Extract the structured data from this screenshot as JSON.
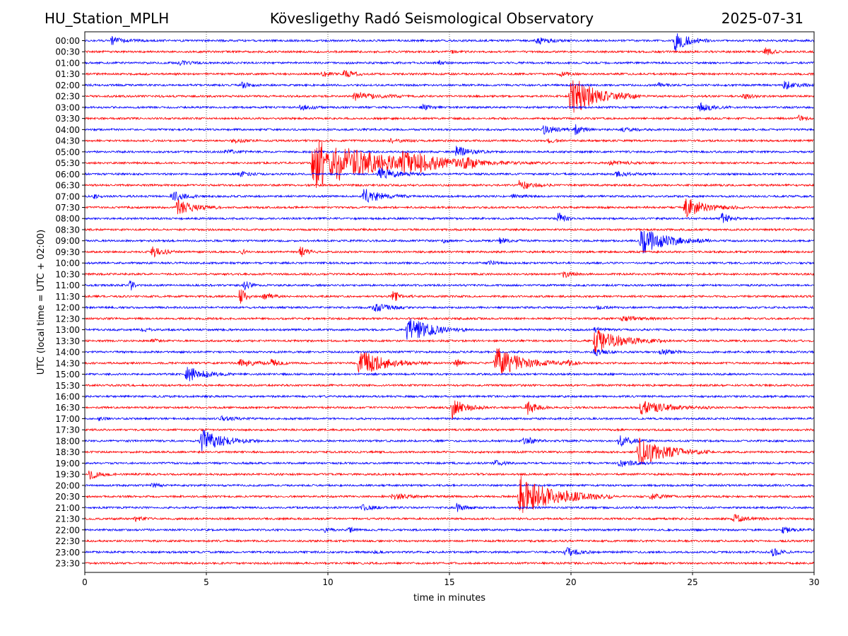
{
  "header": {
    "station": "HU_Station_MPLH",
    "observatory": "Kövesligethy Radó Seismological Observatory",
    "date": "2025-07-31"
  },
  "chart_data": {
    "type": "line",
    "title": "Kövesligethy Radó Seismological Observatory",
    "xlabel": "time in minutes",
    "ylabel": "UTC (local time = UTC + 02:00)",
    "xlim": [
      0,
      30
    ],
    "x_ticks": [
      "0",
      "5",
      "10",
      "15",
      "20",
      "25",
      "30"
    ],
    "x_tick_values": [
      0,
      5,
      10,
      15,
      20,
      25,
      30
    ],
    "grid": "vertical dotted at x tick positions",
    "row_labels": [
      "00:00",
      "00:30",
      "01:00",
      "01:30",
      "02:00",
      "02:30",
      "03:00",
      "03:30",
      "04:00",
      "04:30",
      "05:00",
      "05:30",
      "06:00",
      "06:30",
      "07:00",
      "07:30",
      "08:00",
      "08:30",
      "09:00",
      "09:30",
      "10:00",
      "10:30",
      "11:00",
      "11:30",
      "12:00",
      "12:30",
      "13:00",
      "13:30",
      "14:00",
      "14:30",
      "15:00",
      "15:30",
      "16:00",
      "16:30",
      "17:00",
      "17:30",
      "18:00",
      "18:30",
      "19:00",
      "19:30",
      "20:00",
      "20:30",
      "21:00",
      "21:30",
      "22:00",
      "22:30",
      "23:00",
      "23:30"
    ],
    "colors": {
      "even_rows": "#0000ff",
      "odd_rows": "#ff0000"
    },
    "events": [
      {
        "row": "00:00",
        "start": 1.0,
        "amp": 0.5,
        "dur": 1.5
      },
      {
        "row": "00:00",
        "start": 18.5,
        "amp": 0.4,
        "dur": 1.5
      },
      {
        "row": "00:00",
        "start": 24.2,
        "amp": 1.3,
        "dur": 1.5
      },
      {
        "row": "00:30",
        "start": 15.0,
        "amp": 0.2,
        "dur": 0.8
      },
      {
        "row": "00:30",
        "start": 27.9,
        "amp": 0.45,
        "dur": 1.0
      },
      {
        "row": "01:00",
        "start": 3.8,
        "amp": 0.25,
        "dur": 1.2
      },
      {
        "row": "01:00",
        "start": 14.5,
        "amp": 0.2,
        "dur": 0.8
      },
      {
        "row": "01:30",
        "start": 9.7,
        "amp": 0.35,
        "dur": 0.8
      },
      {
        "row": "01:30",
        "start": 10.6,
        "amp": 0.45,
        "dur": 1.2
      },
      {
        "row": "01:30",
        "start": 19.5,
        "amp": 0.25,
        "dur": 1.0
      },
      {
        "row": "02:00",
        "start": 6.4,
        "amp": 0.3,
        "dur": 1.0
      },
      {
        "row": "02:00",
        "start": 23.5,
        "amp": 0.25,
        "dur": 1.0
      },
      {
        "row": "02:00",
        "start": 28.7,
        "amp": 0.5,
        "dur": 1.3
      },
      {
        "row": "02:30",
        "start": 11.0,
        "amp": 0.5,
        "dur": 2.5
      },
      {
        "row": "02:30",
        "start": 19.9,
        "amp": 2.5,
        "dur": 3.0
      },
      {
        "row": "02:30",
        "start": 27.0,
        "amp": 0.3,
        "dur": 1.0
      },
      {
        "row": "03:00",
        "start": 8.8,
        "amp": 0.3,
        "dur": 1.2
      },
      {
        "row": "03:00",
        "start": 13.8,
        "amp": 0.3,
        "dur": 1.0
      },
      {
        "row": "03:00",
        "start": 25.2,
        "amp": 0.5,
        "dur": 1.5
      },
      {
        "row": "03:30",
        "start": 29.3,
        "amp": 0.3,
        "dur": 0.7
      },
      {
        "row": "04:00",
        "start": 18.8,
        "amp": 0.55,
        "dur": 1.5
      },
      {
        "row": "04:00",
        "start": 20.1,
        "amp": 0.55,
        "dur": 1.0
      },
      {
        "row": "04:00",
        "start": 22.0,
        "amp": 0.2,
        "dur": 1.5
      },
      {
        "row": "04:30",
        "start": 6.0,
        "amp": 0.2,
        "dur": 1.5
      },
      {
        "row": "04:30",
        "start": 12.5,
        "amp": 0.2,
        "dur": 1.5
      },
      {
        "row": "04:30",
        "start": 19.0,
        "amp": 0.2,
        "dur": 1.0
      },
      {
        "row": "05:00",
        "start": 5.7,
        "amp": 0.25,
        "dur": 1.2
      },
      {
        "row": "05:00",
        "start": 15.2,
        "amp": 0.6,
        "dur": 1.5
      },
      {
        "row": "05:30",
        "start": 9.3,
        "amp": 3.2,
        "dur": 7.0
      },
      {
        "row": "05:30",
        "start": 13.0,
        "amp": 1.2,
        "dur": 3.0
      },
      {
        "row": "05:30",
        "start": 15.5,
        "amp": 0.4,
        "dur": 4.0
      },
      {
        "row": "05:30",
        "start": 21.5,
        "amp": 0.25,
        "dur": 2.0
      },
      {
        "row": "06:00",
        "start": 6.3,
        "amp": 0.3,
        "dur": 1.0
      },
      {
        "row": "06:00",
        "start": 12.0,
        "amp": 0.8,
        "dur": 2.0
      },
      {
        "row": "06:00",
        "start": 21.8,
        "amp": 0.3,
        "dur": 1.5
      },
      {
        "row": "06:30",
        "start": 17.8,
        "amp": 0.6,
        "dur": 1.5
      },
      {
        "row": "07:00",
        "start": 0.3,
        "amp": 0.25,
        "dur": 0.6
      },
      {
        "row": "07:00",
        "start": 3.5,
        "amp": 0.6,
        "dur": 1.5
      },
      {
        "row": "07:00",
        "start": 11.4,
        "amp": 0.9,
        "dur": 2.0
      },
      {
        "row": "07:00",
        "start": 17.5,
        "amp": 0.2,
        "dur": 1.0
      },
      {
        "row": "07:30",
        "start": 3.7,
        "amp": 0.9,
        "dur": 2.0
      },
      {
        "row": "07:30",
        "start": 24.6,
        "amp": 1.2,
        "dur": 2.5
      },
      {
        "row": "08:00",
        "start": 19.4,
        "amp": 1.0,
        "dur": 0.6
      },
      {
        "row": "08:00",
        "start": 26.1,
        "amp": 0.8,
        "dur": 0.8
      },
      {
        "row": "09:00",
        "start": 14.7,
        "amp": 0.3,
        "dur": 0.4
      },
      {
        "row": "09:00",
        "start": 17.0,
        "amp": 0.4,
        "dur": 1.0
      },
      {
        "row": "09:00",
        "start": 22.8,
        "amp": 1.6,
        "dur": 3.0
      },
      {
        "row": "09:30",
        "start": 2.7,
        "amp": 0.6,
        "dur": 1.3
      },
      {
        "row": "09:30",
        "start": 6.4,
        "amp": 0.3,
        "dur": 0.4
      },
      {
        "row": "09:30",
        "start": 8.8,
        "amp": 0.6,
        "dur": 0.8
      },
      {
        "row": "10:00",
        "start": 16.5,
        "amp": 0.25,
        "dur": 1.0
      },
      {
        "row": "10:30",
        "start": 19.6,
        "amp": 0.45,
        "dur": 1.0
      },
      {
        "row": "11:00",
        "start": 1.8,
        "amp": 1.0,
        "dur": 0.3
      },
      {
        "row": "11:00",
        "start": 6.5,
        "amp": 0.6,
        "dur": 0.6
      },
      {
        "row": "11:30",
        "start": 6.3,
        "amp": 1.2,
        "dur": 0.6
      },
      {
        "row": "11:30",
        "start": 7.3,
        "amp": 0.5,
        "dur": 0.8
      },
      {
        "row": "11:30",
        "start": 12.6,
        "amp": 0.6,
        "dur": 1.0
      },
      {
        "row": "12:00",
        "start": 11.8,
        "amp": 0.6,
        "dur": 1.5
      },
      {
        "row": "12:00",
        "start": 21.0,
        "amp": 0.2,
        "dur": 1.0
      },
      {
        "row": "12:30",
        "start": 22.0,
        "amp": 0.3,
        "dur": 2.0
      },
      {
        "row": "13:00",
        "start": 2.3,
        "amp": 0.2,
        "dur": 0.8
      },
      {
        "row": "13:00",
        "start": 13.2,
        "amp": 1.6,
        "dur": 2.5
      },
      {
        "row": "13:00",
        "start": 20.9,
        "amp": 0.3,
        "dur": 1.0
      },
      {
        "row": "13:30",
        "start": 2.7,
        "amp": 0.2,
        "dur": 0.6
      },
      {
        "row": "13:30",
        "start": 20.9,
        "amp": 1.5,
        "dur": 3.0
      },
      {
        "row": "14:00",
        "start": 20.9,
        "amp": 0.5,
        "dur": 1.0
      },
      {
        "row": "14:00",
        "start": 23.6,
        "amp": 0.6,
        "dur": 1.0
      },
      {
        "row": "14:30",
        "start": 6.3,
        "amp": 0.4,
        "dur": 2.0
      },
      {
        "row": "14:30",
        "start": 7.6,
        "amp": 0.5,
        "dur": 0.8
      },
      {
        "row": "14:30",
        "start": 11.2,
        "amp": 1.6,
        "dur": 3.0
      },
      {
        "row": "14:30",
        "start": 15.2,
        "amp": 0.4,
        "dur": 0.8
      },
      {
        "row": "14:30",
        "start": 16.8,
        "amp": 2.0,
        "dur": 3.0
      },
      {
        "row": "14:30",
        "start": 19.8,
        "amp": 0.3,
        "dur": 1.0
      },
      {
        "row": "15:00",
        "start": 4.1,
        "amp": 0.9,
        "dur": 2.0
      },
      {
        "row": "16:30",
        "start": 15.0,
        "amp": 1.3,
        "dur": 1.5
      },
      {
        "row": "16:30",
        "start": 18.1,
        "amp": 1.1,
        "dur": 1.0
      },
      {
        "row": "16:30",
        "start": 22.8,
        "amp": 0.8,
        "dur": 3.0
      },
      {
        "row": "17:00",
        "start": 0.5,
        "amp": 0.3,
        "dur": 0.6
      },
      {
        "row": "17:00",
        "start": 5.5,
        "amp": 0.25,
        "dur": 1.5
      },
      {
        "row": "18:00",
        "start": 4.7,
        "amp": 1.4,
        "dur": 2.5
      },
      {
        "row": "18:00",
        "start": 18.0,
        "amp": 0.6,
        "dur": 1.0
      },
      {
        "row": "18:00",
        "start": 21.9,
        "amp": 0.6,
        "dur": 1.5
      },
      {
        "row": "18:30",
        "start": 22.7,
        "amp": 1.8,
        "dur": 3.0
      },
      {
        "row": "19:00",
        "start": 16.8,
        "amp": 0.3,
        "dur": 1.0
      },
      {
        "row": "19:00",
        "start": 21.9,
        "amp": 0.5,
        "dur": 1.5
      },
      {
        "row": "19:30",
        "start": 0.1,
        "amp": 0.6,
        "dur": 1.2
      },
      {
        "row": "20:00",
        "start": 2.7,
        "amp": 0.25,
        "dur": 0.8
      },
      {
        "row": "20:30",
        "start": 12.6,
        "amp": 0.4,
        "dur": 1.5
      },
      {
        "row": "20:30",
        "start": 17.8,
        "amp": 2.5,
        "dur": 4.0
      },
      {
        "row": "20:30",
        "start": 23.2,
        "amp": 0.3,
        "dur": 1.5
      },
      {
        "row": "21:00",
        "start": 11.3,
        "amp": 0.3,
        "dur": 1.5
      },
      {
        "row": "21:00",
        "start": 15.2,
        "amp": 0.5,
        "dur": 1.0
      },
      {
        "row": "21:30",
        "start": 2.0,
        "amp": 0.25,
        "dur": 1.0
      },
      {
        "row": "21:30",
        "start": 26.6,
        "amp": 0.5,
        "dur": 1.5
      },
      {
        "row": "22:00",
        "start": 9.8,
        "amp": 0.25,
        "dur": 0.6
      },
      {
        "row": "22:00",
        "start": 10.8,
        "amp": 0.3,
        "dur": 0.6
      },
      {
        "row": "22:00",
        "start": 28.6,
        "amp": 0.4,
        "dur": 1.4
      },
      {
        "row": "23:00",
        "start": 11.8,
        "amp": 0.2,
        "dur": 0.6
      },
      {
        "row": "23:00",
        "start": 19.7,
        "amp": 0.5,
        "dur": 1.5
      },
      {
        "row": "23:00",
        "start": 28.2,
        "amp": 0.45,
        "dur": 1.0
      }
    ]
  }
}
